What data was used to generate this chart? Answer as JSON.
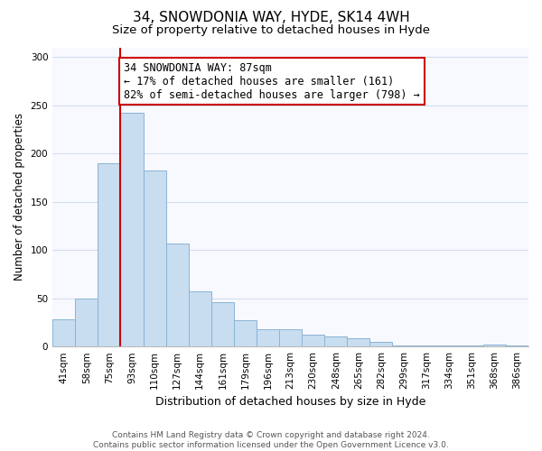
{
  "title": "34, SNOWDONIA WAY, HYDE, SK14 4WH",
  "subtitle": "Size of property relative to detached houses in Hyde",
  "xlabel": "Distribution of detached houses by size in Hyde",
  "ylabel": "Number of detached properties",
  "categories": [
    "41sqm",
    "58sqm",
    "75sqm",
    "93sqm",
    "110sqm",
    "127sqm",
    "144sqm",
    "161sqm",
    "179sqm",
    "196sqm",
    "213sqm",
    "230sqm",
    "248sqm",
    "265sqm",
    "282sqm",
    "299sqm",
    "317sqm",
    "334sqm",
    "351sqm",
    "368sqm",
    "386sqm"
  ],
  "values": [
    28,
    50,
    190,
    242,
    182,
    107,
    57,
    46,
    27,
    18,
    18,
    12,
    10,
    9,
    5,
    1,
    1,
    1,
    1,
    2,
    1
  ],
  "bar_color": "#c8ddf0",
  "bar_edge_color": "#8ab4d4",
  "vline_color": "#cc0000",
  "vline_bar_index": 3,
  "annotation_text": "34 SNOWDONIA WAY: 87sqm\n← 17% of detached houses are smaller (161)\n82% of semi-detached houses are larger (798) →",
  "annotation_box_edgecolor": "#cc0000",
  "annotation_box_facecolor": "white",
  "ylim": [
    0,
    310
  ],
  "footnote": "Contains HM Land Registry data © Crown copyright and database right 2024.\nContains public sector information licensed under the Open Government Licence v3.0.",
  "title_fontsize": 11,
  "subtitle_fontsize": 9.5,
  "xlabel_fontsize": 9,
  "ylabel_fontsize": 8.5,
  "tick_fontsize": 7.5,
  "annotation_fontsize": 8.5,
  "footnote_fontsize": 6.5,
  "bg_color": "#f8f8ff"
}
